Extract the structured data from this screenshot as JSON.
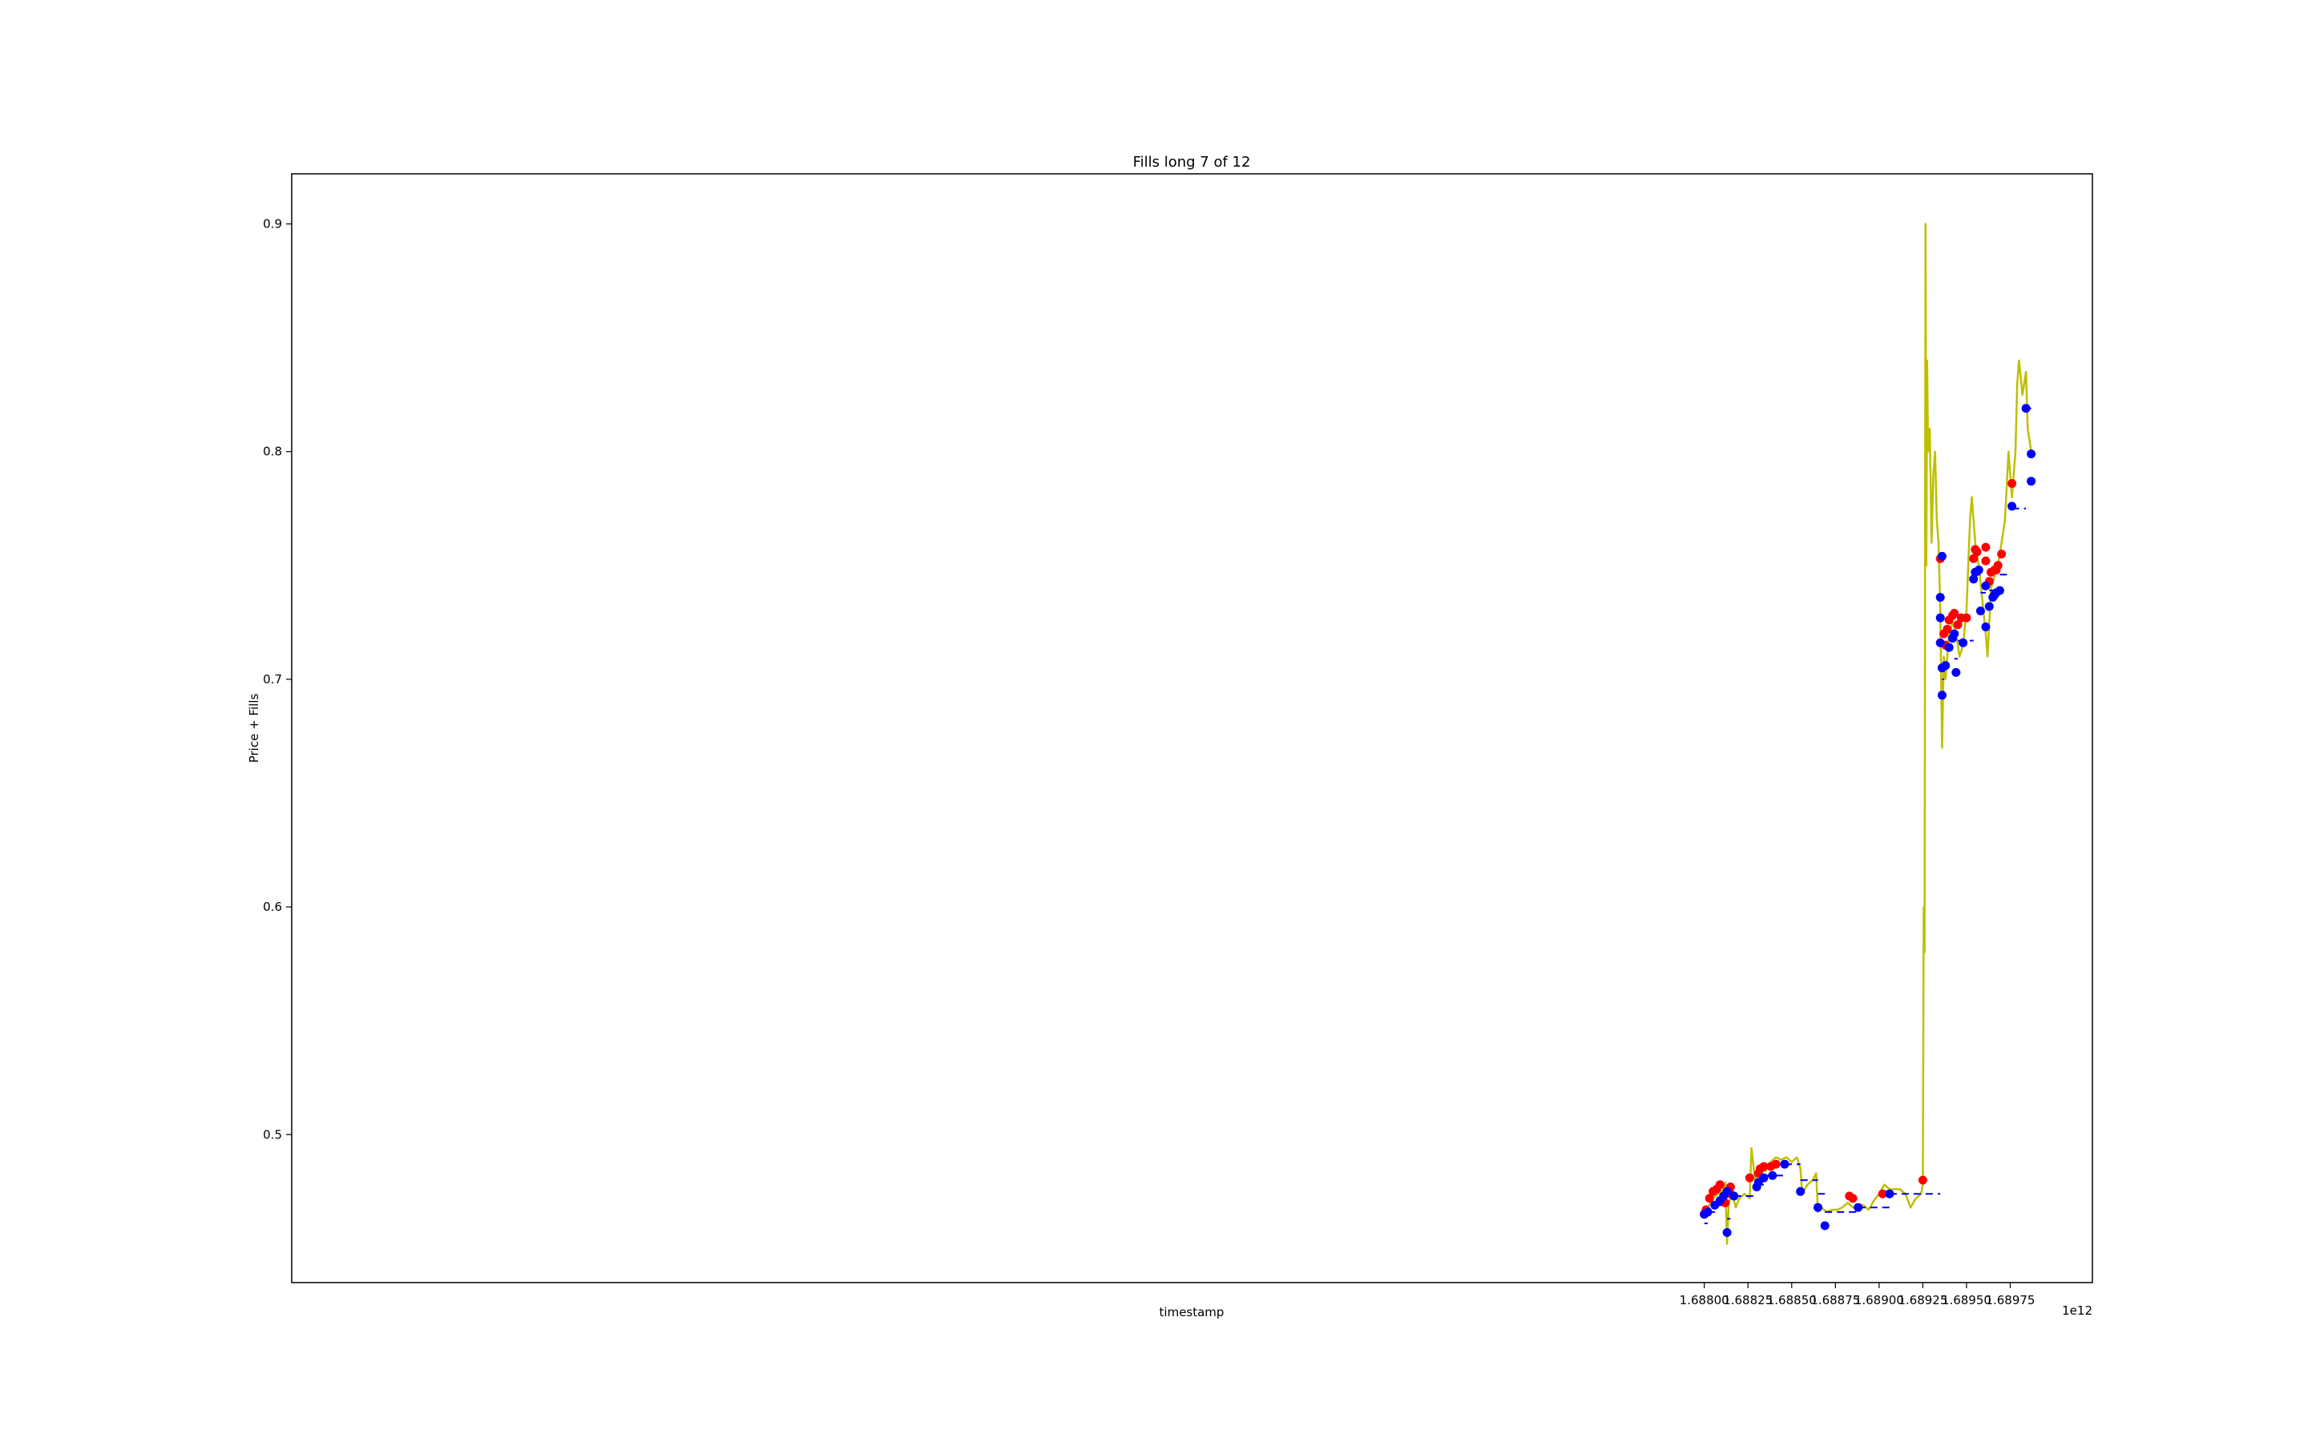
{
  "chart_data": {
    "type": "line",
    "title": "Fills long 7 of 12",
    "xlabel": "timestamp",
    "ylabel": "Price + Fills",
    "x_offset_label": "1e12",
    "xlim": [
      1.67992,
      1.69022
    ],
    "ylim": [
      0.435,
      0.922
    ],
    "x_tick_labels": [
      "1.68800",
      "1.68825",
      "1.68850",
      "1.68875",
      "1.68900",
      "1.68925",
      "1.68950",
      "1.68975"
    ],
    "x_ticks": [
      1.688,
      1.68825,
      1.6885,
      1.68875,
      1.689,
      1.68925,
      1.6895,
      1.68975
    ],
    "y_tick_labels": [
      "0.5",
      "0.6",
      "0.7",
      "0.8",
      "0.9"
    ],
    "y_ticks": [
      0.5,
      0.6,
      0.7,
      0.8,
      0.9
    ],
    "grid": false,
    "colors": {
      "price": "#bfbf00",
      "buy": "#0000ff",
      "sell": "#ff0000",
      "position_price": "#0000ff"
    },
    "series": [
      {
        "role": "price",
        "style": "line",
        "x": [
          1.68799,
          1.68802,
          1.68805,
          1.68808,
          1.68811,
          1.68812,
          1.68813,
          1.68814,
          1.68816,
          1.68818,
          1.6882,
          1.68823,
          1.68826,
          1.68827,
          1.68829,
          1.68832,
          1.68835,
          1.68838,
          1.68841,
          1.68844,
          1.68847,
          1.6885,
          1.68853,
          1.68855,
          1.68856,
          1.68859,
          1.68862,
          1.68864,
          1.68865,
          1.68867,
          1.6887,
          1.68873,
          1.68876,
          1.68879,
          1.68882,
          1.68885,
          1.68888,
          1.68891,
          1.68894,
          1.68897,
          1.689,
          1.68903,
          1.68906,
          1.68909,
          1.68912,
          1.68915,
          1.68918,
          1.68921,
          1.68924,
          1.68925,
          1.689255,
          1.68926,
          1.689265,
          1.68927,
          1.689275,
          1.68928,
          1.68929,
          1.6893,
          1.68931,
          1.68932,
          1.68933,
          1.68934,
          1.68935,
          1.68936,
          1.68937,
          1.68938,
          1.6894,
          1.68942,
          1.68944,
          1.68946,
          1.68948,
          1.6895,
          1.68952,
          1.68953,
          1.68955,
          1.68957,
          1.68959,
          1.68961,
          1.68962,
          1.68964,
          1.68966,
          1.68968,
          1.6897,
          1.68972,
          1.68974,
          1.68976,
          1.68978,
          1.68979,
          1.6898,
          1.68982,
          1.68984,
          1.68985,
          1.68986,
          1.68987
        ],
        "y": [
          0.466,
          0.468,
          0.472,
          0.474,
          0.476,
          0.479,
          0.452,
          0.47,
          0.474,
          0.468,
          0.472,
          0.474,
          0.472,
          0.494,
          0.48,
          0.486,
          0.484,
          0.488,
          0.49,
          0.489,
          0.49,
          0.488,
          0.49,
          0.485,
          0.474,
          0.478,
          0.48,
          0.483,
          0.466,
          0.468,
          0.466,
          0.467,
          0.467,
          0.468,
          0.47,
          0.468,
          0.469,
          0.469,
          0.467,
          0.471,
          0.474,
          0.478,
          0.476,
          0.476,
          0.476,
          0.474,
          0.468,
          0.472,
          0.474,
          0.478,
          0.6,
          0.58,
          0.9,
          0.75,
          0.84,
          0.8,
          0.81,
          0.76,
          0.79,
          0.8,
          0.77,
          0.76,
          0.73,
          0.67,
          0.71,
          0.7,
          0.72,
          0.725,
          0.72,
          0.71,
          0.715,
          0.73,
          0.77,
          0.78,
          0.76,
          0.75,
          0.735,
          0.72,
          0.71,
          0.74,
          0.745,
          0.75,
          0.76,
          0.77,
          0.8,
          0.78,
          0.8,
          0.83,
          0.84,
          0.825,
          0.835,
          0.81,
          0.805,
          0.8
        ]
      },
      {
        "role": "buy",
        "style": "points",
        "x": [
          1.688,
          1.68802,
          1.68806,
          1.68809,
          1.68811,
          1.68813,
          1.68813,
          1.68817,
          1.6883,
          1.68831,
          1.68834,
          1.68839,
          1.68846,
          1.68855,
          1.68865,
          1.68869,
          1.68888,
          1.68906,
          1.68935,
          1.68935,
          1.68935,
          1.68936,
          1.68936,
          1.68936,
          1.68938,
          1.6894,
          1.68942,
          1.68943,
          1.68944,
          1.68948,
          1.68954,
          1.68955,
          1.68957,
          1.68958,
          1.68961,
          1.68961,
          1.68963,
          1.68965,
          1.68966,
          1.68967,
          1.68969,
          1.68976,
          1.68984,
          1.68987,
          1.68987
        ],
        "y": [
          0.465,
          0.466,
          0.469,
          0.471,
          0.473,
          0.475,
          0.457,
          0.473,
          0.477,
          0.479,
          0.481,
          0.482,
          0.487,
          0.475,
          0.468,
          0.46,
          0.468,
          0.474,
          0.736,
          0.727,
          0.716,
          0.705,
          0.693,
          0.754,
          0.706,
          0.714,
          0.718,
          0.72,
          0.703,
          0.716,
          0.744,
          0.747,
          0.748,
          0.73,
          0.741,
          0.723,
          0.732,
          0.736,
          0.737,
          0.738,
          0.739,
          0.776,
          0.819,
          0.799,
          0.787
        ]
      },
      {
        "role": "sell",
        "style": "points",
        "x": [
          1.688,
          1.68801,
          1.68803,
          1.68805,
          1.68807,
          1.68809,
          1.68812,
          1.68815,
          1.68815,
          1.68826,
          1.68831,
          1.68832,
          1.68834,
          1.68838,
          1.68841,
          1.68883,
          1.68885,
          1.68902,
          1.68925,
          1.68935,
          1.68937,
          1.68938,
          1.68939,
          1.6894,
          1.68942,
          1.68943,
          1.68945,
          1.68947,
          1.6895,
          1.68954,
          1.68955,
          1.68956,
          1.68961,
          1.68961,
          1.68963,
          1.68964,
          1.68966,
          1.68967,
          1.68968,
          1.6897,
          1.68976
        ],
        "y": [
          0.465,
          0.467,
          0.472,
          0.475,
          0.476,
          0.478,
          0.47,
          0.474,
          0.477,
          0.481,
          0.483,
          0.485,
          0.486,
          0.486,
          0.487,
          0.473,
          0.472,
          0.474,
          0.48,
          0.753,
          0.72,
          0.715,
          0.722,
          0.726,
          0.728,
          0.729,
          0.724,
          0.727,
          0.727,
          0.753,
          0.757,
          0.756,
          0.758,
          0.752,
          0.743,
          0.747,
          0.748,
          0.748,
          0.75,
          0.755,
          0.786
        ]
      },
      {
        "role": "position_price",
        "style": "dashed-steps",
        "segments": [
          {
            "x": [
              1.688,
              1.68802
            ],
            "y": 0.461
          },
          {
            "x": [
              1.68802,
              1.68807
            ],
            "y": 0.466
          },
          {
            "x": [
              1.68807,
              1.68812
            ],
            "y": 0.469
          },
          {
            "x": [
              1.68812,
              1.68814
            ],
            "y": 0.471
          },
          {
            "x": [
              1.68813,
              1.68815
            ],
            "y": 0.463
          },
          {
            "x": [
              1.68815,
              1.68817
            ],
            "y": 0.472
          },
          {
            "x": [
              1.68817,
              1.6883
            ],
            "y": 0.473
          },
          {
            "x": [
              1.6883,
              1.68834
            ],
            "y": 0.478
          },
          {
            "x": [
              1.68834,
              1.68846
            ],
            "y": 0.482
          },
          {
            "x": [
              1.68846,
              1.68855
            ],
            "y": 0.487
          },
          {
            "x": [
              1.68855,
              1.68865
            ],
            "y": 0.48
          },
          {
            "x": [
              1.68865,
              1.68869
            ],
            "y": 0.474
          },
          {
            "x": [
              1.68869,
              1.68888
            ],
            "y": 0.466
          },
          {
            "x": [
              1.68888,
              1.68906
            ],
            "y": 0.468
          },
          {
            "x": [
              1.68906,
              1.68935
            ],
            "y": 0.474
          },
          {
            "x": [
              1.68936,
              1.68937
            ],
            "y": 0.7
          },
          {
            "x": [
              1.68938,
              1.68943
            ],
            "y": 0.713
          },
          {
            "x": [
              1.68943,
              1.68945
            ],
            "y": 0.709
          },
          {
            "x": [
              1.68945,
              1.68954
            ],
            "y": 0.717
          },
          {
            "x": [
              1.68954,
              1.68958
            ],
            "y": 0.746
          },
          {
            "x": [
              1.68958,
              1.68961
            ],
            "y": 0.738
          },
          {
            "x": [
              1.68961,
              1.68963
            ],
            "y": 0.731
          },
          {
            "x": [
              1.68963,
              1.68969
            ],
            "y": 0.739
          },
          {
            "x": [
              1.68969,
              1.68976
            ],
            "y": 0.746
          },
          {
            "x": [
              1.68976,
              1.68984
            ],
            "y": 0.775
          },
          {
            "x": [
              1.68984,
              1.68987
            ],
            "y": 0.819
          }
        ]
      }
    ]
  }
}
